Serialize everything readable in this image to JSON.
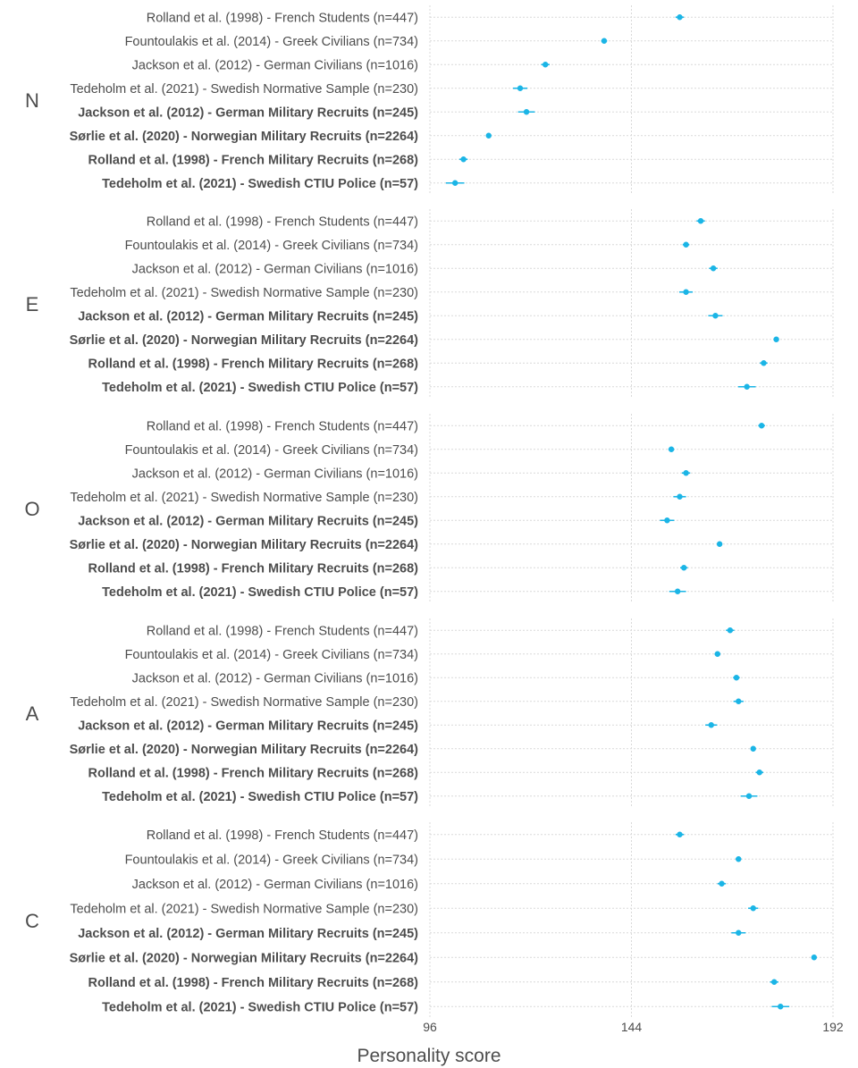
{
  "chart_data": {
    "type": "forest",
    "xlabel": "Personality score",
    "xlim": [
      96,
      192
    ],
    "xticks": [
      96,
      144,
      192
    ],
    "grid": true,
    "studies": [
      {
        "label": "Rolland et al. (1998) - French Students (n=447)",
        "bold": false
      },
      {
        "label": "Fountoulakis et al. (2014) - Greek Civilians (n=734)",
        "bold": false
      },
      {
        "label": "Jackson et al. (2012) - German Civilians (n=1016)",
        "bold": false
      },
      {
        "label": "Tedeholm et al. (2021) - Swedish Normative Sample (n=230)",
        "bold": false
      },
      {
        "label": "Jackson et al. (2012) - German Military Recruits (n=245)",
        "bold": true
      },
      {
        "label": "Sørlie et al. (2020) - Norwegian Military Recruits (n=2264)",
        "bold": true
      },
      {
        "label": "Rolland et al. (1998) - French Military Recruits (n=268)",
        "bold": true
      },
      {
        "label": "Tedeholm et al. (2021) - Swedish CTIU Police (n=57)",
        "bold": true
      }
    ],
    "facets": [
      {
        "name": "N",
        "values": [
          155.5,
          137.5,
          123.5,
          117.5,
          119,
          110,
          104,
          102
        ],
        "ci": [
          [
            154.5,
            156.5
          ],
          [
            136.8,
            138.2
          ],
          [
            122.5,
            124.5
          ],
          [
            115.8,
            119.2
          ],
          [
            117,
            121
          ],
          [
            109.5,
            110.5
          ],
          [
            103,
            105
          ],
          [
            99.8,
            104.2
          ]
        ]
      },
      {
        "name": "E",
        "values": [
          160.5,
          157,
          163.5,
          157,
          164,
          178.5,
          175.5,
          171.5
        ],
        "ci": [
          [
            159.5,
            161.5
          ],
          [
            156.2,
            157.8
          ],
          [
            162.5,
            164.5
          ],
          [
            155.4,
            158.6
          ],
          [
            162.3,
            165.7
          ],
          [
            178,
            179
          ],
          [
            174.6,
            176.4
          ],
          [
            169.4,
            173.6
          ]
        ]
      },
      {
        "name": "O",
        "values": [
          175,
          153.5,
          157,
          155.5,
          152.5,
          165,
          156.5,
          155
        ],
        "ci": [
          [
            174.2,
            175.8
          ],
          [
            152.8,
            154.2
          ],
          [
            156,
            158
          ],
          [
            154,
            157
          ],
          [
            150.8,
            154.2
          ],
          [
            164.5,
            165.5
          ],
          [
            155.6,
            157.4
          ],
          [
            153,
            157
          ]
        ]
      },
      {
        "name": "A",
        "values": [
          167.5,
          164.5,
          169,
          169.5,
          163,
          173,
          174.5,
          172
        ],
        "ci": [
          [
            166.5,
            168.5
          ],
          [
            163.8,
            165.2
          ],
          [
            168.2,
            169.8
          ],
          [
            168.3,
            170.7
          ],
          [
            161.6,
            164.4
          ],
          [
            172.5,
            173.5
          ],
          [
            173.6,
            175.4
          ],
          [
            170,
            174
          ]
        ]
      },
      {
        "name": "C",
        "values": [
          155.5,
          169.5,
          165.5,
          173,
          169.5,
          187.5,
          178,
          179.5
        ],
        "ci": [
          [
            154.5,
            156.5
          ],
          [
            168.8,
            170.2
          ],
          [
            164.5,
            166.5
          ],
          [
            171.8,
            174.2
          ],
          [
            167.8,
            171.2
          ],
          [
            187,
            188
          ],
          [
            177,
            179
          ],
          [
            177.4,
            181.6
          ]
        ]
      }
    ]
  },
  "colors": {
    "point": "#1bb5e6",
    "grid": "#d9d9d9",
    "text": "#4d4d4d"
  }
}
